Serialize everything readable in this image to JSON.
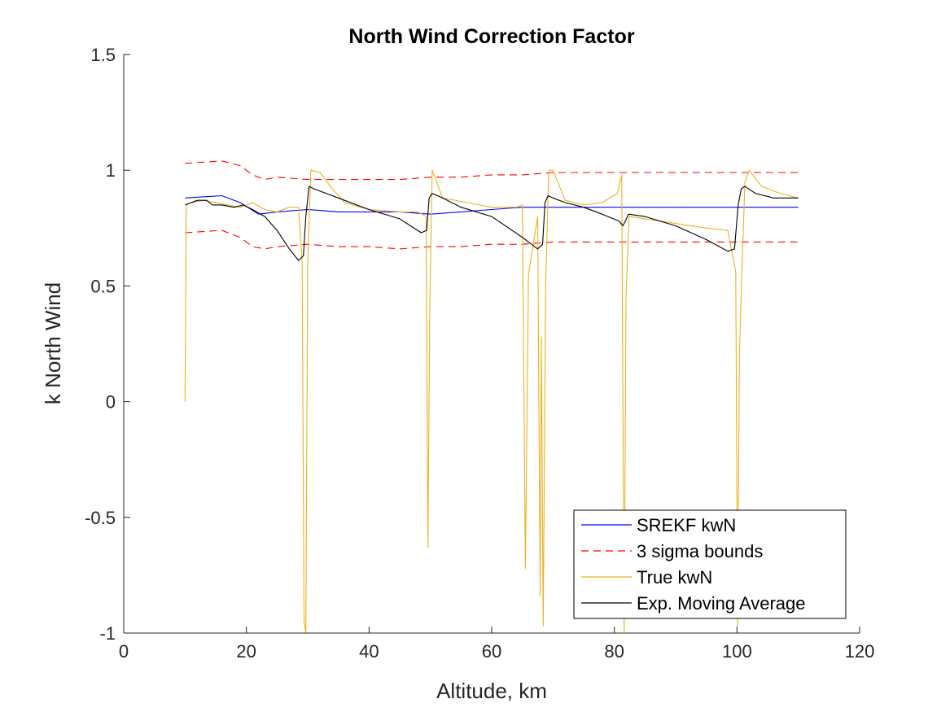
{
  "chart_data": {
    "type": "line",
    "title": "North Wind Correction Factor",
    "xlabel": "Altitude, km",
    "ylabel": "k North Wind",
    "xlim": [
      0,
      120
    ],
    "ylim": [
      -1,
      1.5
    ],
    "xticks": [
      "0",
      "20",
      "40",
      "60",
      "80",
      "100",
      "120"
    ],
    "yticks": [
      "-1",
      "-0.5",
      "0",
      "0.5",
      "1",
      "1.5"
    ],
    "grid": false,
    "legend_position": "bottom-right",
    "series": [
      {
        "name": "SREKF kwN",
        "color": "#0000ff",
        "style": "solid",
        "x": [
          10,
          16,
          19,
          22,
          25,
          30,
          35,
          40,
          45,
          50,
          55,
          60,
          65,
          70,
          80,
          90,
          100,
          110
        ],
        "y": [
          0.88,
          0.89,
          0.86,
          0.81,
          0.82,
          0.83,
          0.82,
          0.82,
          0.82,
          0.81,
          0.82,
          0.83,
          0.84,
          0.84,
          0.84,
          0.84,
          0.84,
          0.84
        ]
      },
      {
        "name": "3 sigma bounds",
        "color": "#ff0000",
        "style": "dashed",
        "x": [
          10,
          16,
          19,
          21,
          23,
          25,
          30,
          35,
          40,
          45,
          50,
          55,
          60,
          65,
          70,
          80,
          90,
          100,
          110
        ],
        "y": [
          1.03,
          1.04,
          1.02,
          0.98,
          0.96,
          0.97,
          0.96,
          0.96,
          0.96,
          0.96,
          0.97,
          0.97,
          0.98,
          0.98,
          0.99,
          0.99,
          0.99,
          0.99,
          0.99
        ],
        "lower": {
          "x": [
            10,
            16,
            19,
            21,
            23,
            25,
            30,
            35,
            40,
            45,
            50,
            55,
            60,
            65,
            70,
            80,
            90,
            100,
            110
          ],
          "y": [
            0.73,
            0.74,
            0.71,
            0.67,
            0.66,
            0.67,
            0.68,
            0.67,
            0.67,
            0.66,
            0.67,
            0.67,
            0.68,
            0.68,
            0.69,
            0.69,
            0.69,
            0.69,
            0.69
          ]
        }
      },
      {
        "name": "True kwN",
        "color": "#edb120",
        "style": "solid",
        "x": [
          10,
          10.2,
          11,
          13,
          15,
          17,
          19,
          21,
          23,
          25,
          27,
          28.5,
          29.1,
          29.4,
          29.7,
          30.0,
          30.5,
          32,
          34,
          36,
          40,
          45,
          48,
          49.3,
          49.6,
          49.9,
          50.3,
          52,
          56,
          60,
          64,
          65,
          65.5,
          66,
          67.5,
          67.9,
          68.1,
          68.4,
          68.8,
          69.3,
          70,
          72,
          75,
          78,
          80.5,
          81.2,
          81.6,
          81.9,
          82.4,
          85,
          90,
          95,
          98.5,
          99.8,
          100.1,
          100.4,
          100.8,
          101.3,
          102,
          104,
          107,
          110
        ],
        "y": [
          0,
          0.85,
          0.86,
          0.87,
          0.86,
          0.85,
          0.84,
          0.86,
          0.83,
          0.82,
          0.84,
          0.84,
          0.6,
          -0.95,
          -1.0,
          0.6,
          1.0,
          0.99,
          0.92,
          0.86,
          0.83,
          0.82,
          0.82,
          0.8,
          -0.63,
          0.4,
          1.0,
          0.88,
          0.86,
          0.84,
          0.84,
          0.85,
          -0.72,
          0.55,
          0.8,
          -0.84,
          0.28,
          -0.97,
          0.5,
          1.0,
          1.0,
          0.87,
          0.85,
          0.86,
          0.9,
          0.98,
          -1.0,
          0.45,
          0.8,
          0.79,
          0.77,
          0.75,
          0.74,
          0.56,
          -0.97,
          0.2,
          0.57,
          0.95,
          1.0,
          0.93,
          0.9,
          0.88
        ]
      },
      {
        "name": "Exp. Moving Average",
        "color": "#000000",
        "style": "solid",
        "x": [
          10,
          11,
          12,
          13.5,
          14.5,
          16,
          18,
          19.5,
          21,
          23,
          25,
          27,
          28.5,
          29.3,
          29.7,
          30.2,
          31,
          33,
          36,
          40,
          45,
          48.5,
          49.4,
          49.8,
          50.3,
          52,
          55,
          60,
          65,
          67.5,
          68.3,
          68.7,
          69.2,
          70,
          72,
          75,
          78,
          80.8,
          81.4,
          81.8,
          82.3,
          85,
          90,
          95,
          98.5,
          99.6,
          100.2,
          100.7,
          101.3,
          103,
          106,
          110
        ],
        "y": [
          0.85,
          0.86,
          0.87,
          0.87,
          0.85,
          0.85,
          0.84,
          0.85,
          0.83,
          0.8,
          0.74,
          0.66,
          0.61,
          0.63,
          0.8,
          0.93,
          0.92,
          0.9,
          0.87,
          0.83,
          0.79,
          0.73,
          0.74,
          0.88,
          0.9,
          0.88,
          0.84,
          0.8,
          0.71,
          0.66,
          0.68,
          0.86,
          0.89,
          0.88,
          0.86,
          0.84,
          0.81,
          0.78,
          0.76,
          0.78,
          0.81,
          0.8,
          0.76,
          0.7,
          0.65,
          0.66,
          0.85,
          0.92,
          0.93,
          0.9,
          0.88,
          0.88
        ]
      }
    ]
  }
}
